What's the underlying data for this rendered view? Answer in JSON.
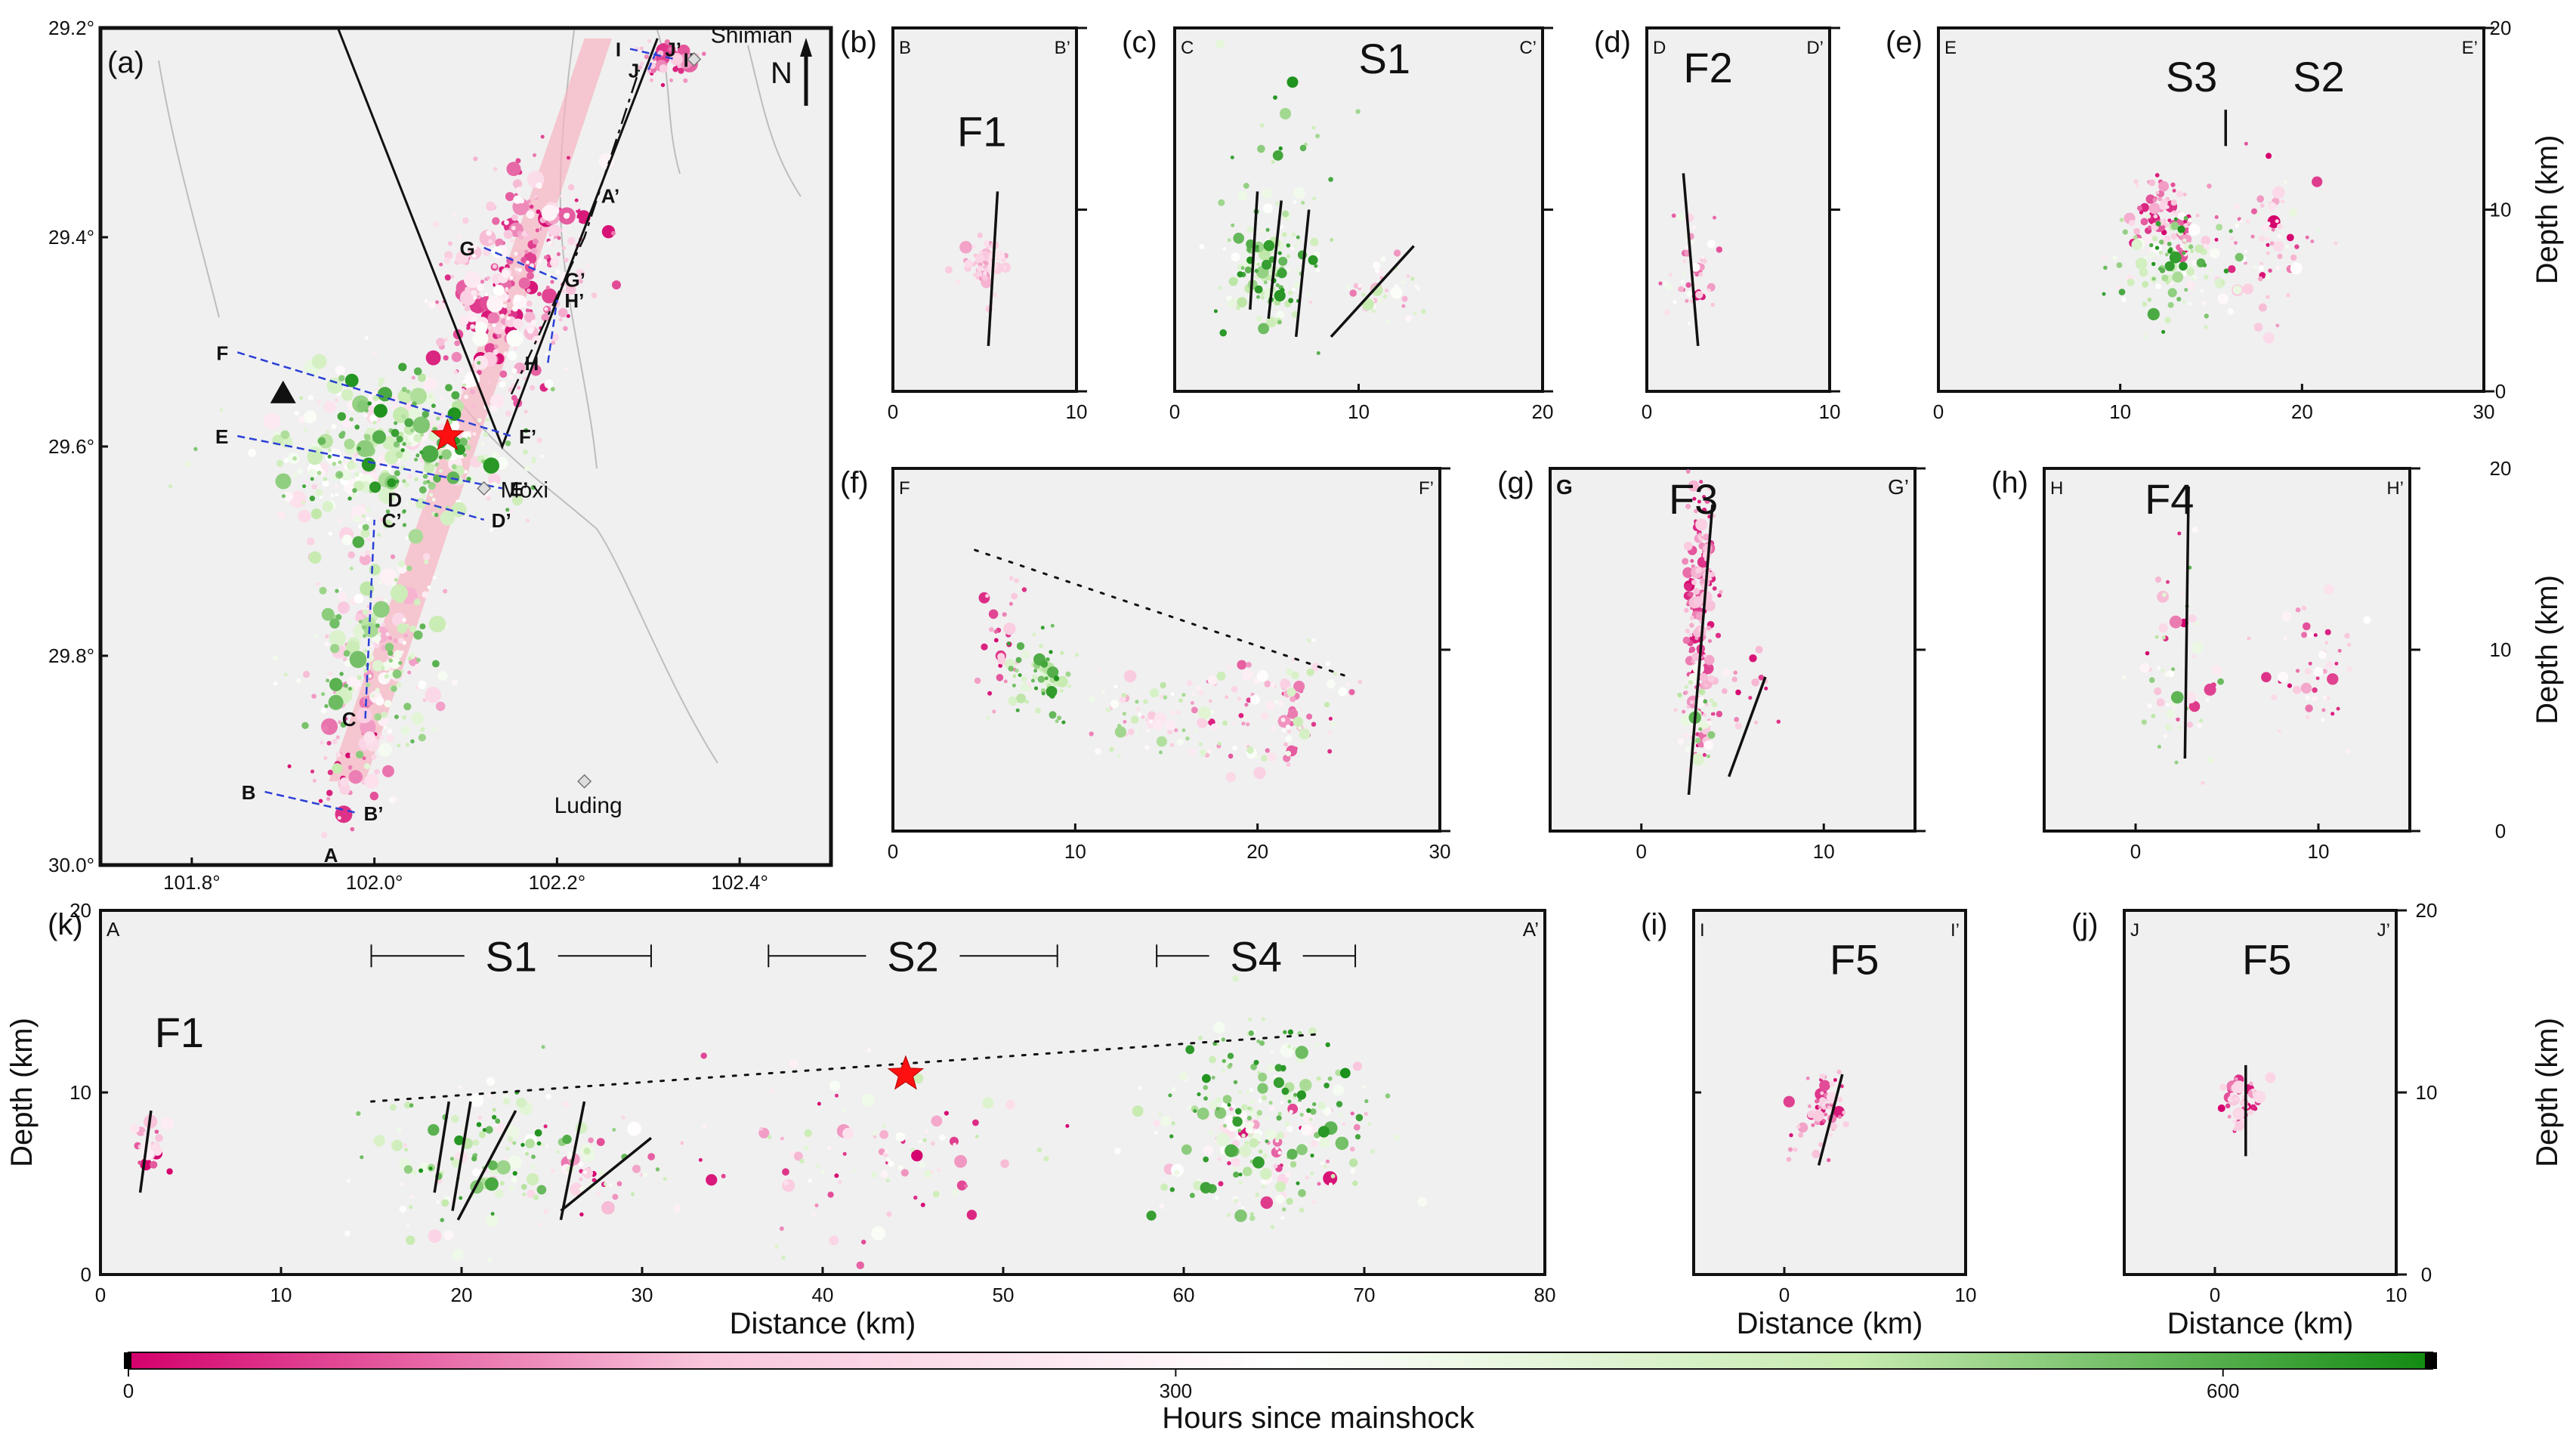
{
  "colorbar": {
    "label": "Hours since mainshock",
    "ticks": [
      0,
      300,
      600
    ],
    "range": [
      0,
      600
    ],
    "colors": [
      "#d4006c",
      "#f9c6dc",
      "#ffffff",
      "#c7ebb0",
      "#108a10"
    ]
  },
  "panels": {
    "a": {
      "label": "(a)",
      "lon_ticks": [
        "101.8°",
        "102.0°",
        "102.2°",
        "102.4°"
      ],
      "lat_ticks": [
        "30.0°",
        "29.8°",
        "29.6°",
        "29.4°",
        "29.2°"
      ],
      "north": "N",
      "towns": [
        {
          "name": "Luding",
          "lon": 102.23,
          "lat": 29.92
        },
        {
          "name": "Moxi",
          "lon": 102.12,
          "lat": 29.64
        },
        {
          "name": "Shimian",
          "lon": 102.35,
          "lat": 29.23
        }
      ],
      "profiles": [
        {
          "a": "A",
          "b": "A’",
          "lon1": 101.97,
          "lat1": 29.99,
          "lon2": 102.24,
          "lat2": 29.36
        },
        {
          "a": "B",
          "b": "B’",
          "lon1": 101.88,
          "lat1": 29.93,
          "lon2": 101.98,
          "lat2": 29.95
        },
        {
          "a": "C",
          "b": "C’",
          "lon1": 101.99,
          "lat1": 29.86,
          "lon2": 102.0,
          "lat2": 29.67
        },
        {
          "a": "D",
          "b": "D’",
          "lon1": 102.04,
          "lat1": 29.65,
          "lon2": 102.12,
          "lat2": 29.67
        },
        {
          "a": "E",
          "b": "E’",
          "lon1": 101.85,
          "lat1": 29.59,
          "lon2": 102.14,
          "lat2": 29.64
        },
        {
          "a": "F",
          "b": "F’",
          "lon1": 101.85,
          "lat1": 29.51,
          "lon2": 102.15,
          "lat2": 29.59
        },
        {
          "a": "G",
          "b": "G’",
          "lon1": 102.12,
          "lat1": 29.41,
          "lon2": 102.2,
          "lat2": 29.44
        },
        {
          "a": "H",
          "b": "H’",
          "lon1": 102.19,
          "lat1": 29.52,
          "lon2": 102.2,
          "lat2": 29.46
        },
        {
          "a": "I",
          "b": "I’",
          "lon1": 102.28,
          "lat1": 29.22,
          "lon2": 102.33,
          "lat2": 29.23
        },
        {
          "a": "J",
          "b": "J’",
          "lon1": 102.3,
          "lat1": 29.24,
          "lon2": 102.31,
          "lat2": 29.22
        }
      ]
    },
    "b": {
      "label": "(b)",
      "left": "B",
      "right": "B’",
      "xticks": [
        "0",
        "10"
      ],
      "labels": [
        "F1"
      ]
    },
    "c": {
      "label": "(c)",
      "left": "C",
      "right": "C’",
      "xticks": [
        "0",
        "10",
        "20"
      ],
      "labels": [
        "S1"
      ]
    },
    "d": {
      "label": "(d)",
      "left": "D",
      "right": "D’",
      "xticks": [
        "0",
        "10"
      ],
      "labels": [
        "F2"
      ]
    },
    "e": {
      "label": "(e)",
      "left": "E",
      "right": "E’",
      "xticks": [
        "0",
        "10",
        "20",
        "30"
      ],
      "yticks": [
        "0",
        "10",
        "20"
      ],
      "ylabel": "Depth (km)",
      "labels": [
        "S3",
        "S2"
      ]
    },
    "f": {
      "label": "(f)",
      "left": "F",
      "right": "F’",
      "xticks": [
        "0",
        "10",
        "20",
        "30"
      ],
      "labels": []
    },
    "g": {
      "label": "(g)",
      "left": "G",
      "right": "G’",
      "xticks": [
        "0",
        "10"
      ],
      "labels": [
        "F3"
      ]
    },
    "h": {
      "label": "(h)",
      "left": "H",
      "right": "H’",
      "xticks": [
        "0",
        "10"
      ],
      "yticks": [
        "0",
        "10",
        "20"
      ],
      "ylabel": "Depth (km)",
      "labels": [
        "F4"
      ]
    },
    "k": {
      "label": "(k)",
      "left": "A",
      "right": "A’",
      "xticks": [
        "0",
        "10",
        "20",
        "30",
        "40",
        "50",
        "60",
        "70",
        "80"
      ],
      "yticks": [
        "0",
        "10",
        "20"
      ],
      "xlabel": "Distance (km)",
      "ylabel": "Depth (km)",
      "labels": [
        "F1"
      ],
      "segments": [
        "S1",
        "S2",
        "S4"
      ]
    },
    "i": {
      "label": "(i)",
      "left": "I",
      "right": "I’",
      "xticks": [
        "0",
        "10"
      ],
      "xlabel": "Distance (km)",
      "labels": [
        "F5"
      ]
    },
    "j": {
      "label": "(j)",
      "left": "J",
      "right": "J’",
      "xticks": [
        "0",
        "10"
      ],
      "yticks": [
        "0",
        "10",
        "20"
      ],
      "xlabel": "Distance (km)",
      "ylabel": "Depth (km)",
      "labels": [
        "F5"
      ]
    }
  },
  "chart_data": [
    {
      "type": "scatter",
      "panel": "a",
      "xlabel": "",
      "ylabel": "",
      "xlim": [
        101.7,
        102.5
      ],
      "ylim": [
        29.2,
        30.0
      ],
      "mainshock": {
        "x": 102.08,
        "y": 29.59
      },
      "station": {
        "x": 101.9,
        "y": 29.55
      },
      "clusters": [
        {
          "x": 102.0,
          "y": 29.8,
          "sx": 0.035,
          "sy": 0.05,
          "n": 220,
          "hours": [
            120,
            600
          ]
        },
        {
          "x": 102.02,
          "y": 29.61,
          "sx": 0.07,
          "sy": 0.04,
          "n": 420,
          "hours": [
            200,
            650
          ]
        },
        {
          "x": 102.13,
          "y": 29.47,
          "sx": 0.03,
          "sy": 0.05,
          "n": 220,
          "hours": [
            0,
            350
          ]
        },
        {
          "x": 102.19,
          "y": 29.41,
          "sx": 0.025,
          "sy": 0.04,
          "n": 130,
          "hours": [
            0,
            300
          ]
        },
        {
          "x": 101.97,
          "y": 29.9,
          "sx": 0.02,
          "sy": 0.03,
          "n": 50,
          "hours": [
            0,
            250
          ]
        },
        {
          "x": 102.32,
          "y": 29.23,
          "sx": 0.02,
          "sy": 0.01,
          "n": 40,
          "hours": [
            0,
            200
          ]
        }
      ]
    },
    {
      "type": "scatter",
      "panel": "b",
      "xlabel": "",
      "ylabel": "",
      "xlim": [
        0,
        10
      ],
      "ylim": [
        20,
        0
      ],
      "clusters": [
        {
          "x": 5.0,
          "y": 7,
          "sx": 0.6,
          "sy": 0.7,
          "n": 60,
          "hours": [
            120,
            250
          ]
        }
      ],
      "faults": [
        {
          "x1": 5.2,
          "y1": 2.5,
          "x2": 5.7,
          "y2": 11
        }
      ]
    },
    {
      "type": "scatter",
      "panel": "c",
      "xlabel": "",
      "ylabel": "",
      "xlim": [
        0,
        20
      ],
      "ylim": [
        20,
        0
      ],
      "clusters": [
        {
          "x": 5,
          "y": 7,
          "sx": 1.3,
          "sy": 1.7,
          "n": 150,
          "hours": [
            300,
            650
          ]
        },
        {
          "x": 11,
          "y": 5.5,
          "sx": 1.3,
          "sy": 0.8,
          "n": 40,
          "hours": [
            100,
            500
          ]
        },
        {
          "x": 6,
          "y": 13,
          "sx": 2,
          "sy": 3,
          "n": 20,
          "hours": [
            400,
            650
          ]
        }
      ],
      "faults": [
        {
          "x1": 4.1,
          "y1": 4.5,
          "x2": 4.5,
          "y2": 11
        },
        {
          "x1": 5.1,
          "y1": 4.0,
          "x2": 5.8,
          "y2": 10.5
        },
        {
          "x1": 6.6,
          "y1": 3.0,
          "x2": 7.3,
          "y2": 10
        },
        {
          "x1": 8.5,
          "y1": 3.0,
          "x2": 13,
          "y2": 8
        }
      ]
    },
    {
      "type": "scatter",
      "panel": "d",
      "xlabel": "",
      "ylabel": "",
      "xlim": [
        0,
        10
      ],
      "ylim": [
        20,
        0
      ],
      "clusters": [
        {
          "x": 2.5,
          "y": 6.5,
          "sx": 0.6,
          "sy": 1.5,
          "n": 50,
          "hours": [
            0,
            400
          ]
        }
      ],
      "faults": [
        {
          "x1": 2.8,
          "y1": 2.5,
          "x2": 2.0,
          "y2": 12
        }
      ]
    },
    {
      "type": "scatter",
      "panel": "e",
      "xlabel": "",
      "ylabel": "Depth (km)",
      "xlim": [
        0,
        30
      ],
      "ylim": [
        20,
        0
      ],
      "clusters": [
        {
          "x": 13,
          "y": 7,
          "sx": 1.6,
          "sy": 1.5,
          "n": 130,
          "hours": [
            250,
            650
          ]
        },
        {
          "x": 12.5,
          "y": 9.5,
          "sx": 1.2,
          "sy": 1.1,
          "n": 80,
          "hours": [
            0,
            250
          ]
        },
        {
          "x": 18.5,
          "y": 8.5,
          "sx": 1.5,
          "sy": 2,
          "n": 70,
          "hours": [
            0,
            400
          ]
        }
      ],
      "faults": [
        {
          "x1": 15.8,
          "y1": 13.5,
          "x2": 15.8,
          "y2": 15.5
        }
      ]
    },
    {
      "type": "scatter",
      "panel": "f",
      "xlabel": "",
      "ylabel": "",
      "xlim": [
        0,
        30
      ],
      "ylim": [
        20,
        0
      ],
      "clusters": [
        {
          "x": 8,
          "y": 8.5,
          "sx": 1,
          "sy": 1,
          "n": 60,
          "hours": [
            400,
            650
          ]
        },
        {
          "x": 6,
          "y": 10,
          "sx": 0.6,
          "sy": 2,
          "n": 30,
          "hours": [
            0,
            200
          ]
        },
        {
          "x": 15,
          "y": 6.5,
          "sx": 2.5,
          "sy": 1.3,
          "n": 90,
          "hours": [
            100,
            550
          ]
        },
        {
          "x": 21.5,
          "y": 6.5,
          "sx": 1.8,
          "sy": 1.7,
          "n": 90,
          "hours": [
            0,
            500
          ]
        }
      ],
      "dashed": [
        {
          "x1": 4.5,
          "y1": 15.5,
          "x2": 25,
          "y2": 8.5
        }
      ]
    },
    {
      "type": "scatter",
      "panel": "g",
      "xlabel": "",
      "ylabel": "",
      "xlim": [
        -5,
        15
      ],
      "ylim": [
        20,
        0
      ],
      "clusters": [
        {
          "x": 3.2,
          "y": 12,
          "sx": 0.4,
          "sy": 3.5,
          "n": 200,
          "hours": [
            0,
            200
          ]
        },
        {
          "x": 3.0,
          "y": 6,
          "sx": 0.6,
          "sy": 2,
          "n": 40,
          "hours": [
            250,
            600
          ]
        },
        {
          "x": 6,
          "y": 7.5,
          "sx": 0.8,
          "sy": 1,
          "n": 15,
          "hours": [
            0,
            200
          ]
        }
      ],
      "faults": [
        {
          "x1": 2.6,
          "y1": 2,
          "x2": 3.9,
          "y2": 18
        },
        {
          "x1": 4.8,
          "y1": 3,
          "x2": 6.8,
          "y2": 8.5
        }
      ]
    },
    {
      "type": "scatter",
      "panel": "h",
      "xlabel": "",
      "ylabel": "Depth (km)",
      "xlim": [
        -5,
        15
      ],
      "ylim": [
        20,
        0
      ],
      "clusters": [
        {
          "x": 2.5,
          "y": 9,
          "sx": 1.3,
          "sy": 2.5,
          "n": 60,
          "hours": [
            0,
            600
          ]
        },
        {
          "x": 10,
          "y": 9,
          "sx": 1.6,
          "sy": 2,
          "n": 50,
          "hours": [
            0,
            350
          ]
        }
      ],
      "faults": [
        {
          "x1": 2.7,
          "y1": 4,
          "x2": 2.9,
          "y2": 19
        }
      ]
    },
    {
      "type": "scatter",
      "panel": "k",
      "xlabel": "Distance (km)",
      "ylabel": "Depth (km)",
      "xlim": [
        0,
        80
      ],
      "ylim": [
        20,
        0
      ],
      "mainshock": {
        "x": 44.6,
        "y": 11
      },
      "clusters": [
        {
          "x": 2.5,
          "y": 7,
          "sx": 0.6,
          "sy": 0.8,
          "n": 25,
          "hours": [
            0,
            300
          ]
        },
        {
          "x": 21,
          "y": 6.5,
          "sx": 3.5,
          "sy": 2,
          "n": 150,
          "hours": [
            200,
            650
          ]
        },
        {
          "x": 27.5,
          "y": 6,
          "sx": 1.5,
          "sy": 1.2,
          "n": 40,
          "hours": [
            0,
            500
          ]
        },
        {
          "x": 42,
          "y": 7,
          "sx": 4.5,
          "sy": 2.5,
          "n": 100,
          "hours": [
            0,
            500
          ]
        },
        {
          "x": 64,
          "y": 9,
          "sx": 2.8,
          "sy": 2.6,
          "n": 230,
          "hours": [
            300,
            650
          ]
        },
        {
          "x": 65,
          "y": 7,
          "sx": 2.5,
          "sy": 1.5,
          "n": 70,
          "hours": [
            0,
            350
          ]
        }
      ],
      "faults": [
        {
          "x1": 2.2,
          "y1": 4.5,
          "x2": 2.8,
          "y2": 9
        },
        {
          "x1": 18.5,
          "y1": 4.5,
          "x2": 19.3,
          "y2": 9.5
        },
        {
          "x1": 19.5,
          "y1": 3.5,
          "x2": 20.5,
          "y2": 9.5
        },
        {
          "x1": 19.8,
          "y1": 3.0,
          "x2": 23,
          "y2": 9
        },
        {
          "x1": 25.5,
          "y1": 3,
          "x2": 26.8,
          "y2": 9.5
        },
        {
          "x1": 25.5,
          "y1": 3.5,
          "x2": 30.5,
          "y2": 7.5
        }
      ],
      "dashed": [
        {
          "x1": 15,
          "y1": 9.5,
          "x2": 67.5,
          "y2": 13.2
        }
      ],
      "segment_bars": [
        {
          "label": "S1",
          "x1": 15,
          "x2": 30.5,
          "y": 17.5
        },
        {
          "label": "S2",
          "x1": 37,
          "x2": 53,
          "y": 17.5
        },
        {
          "label": "S4",
          "x1": 58.5,
          "x2": 69.5,
          "y": 17.5
        }
      ]
    },
    {
      "type": "scatter",
      "panel": "i",
      "xlabel": "Distance (km)",
      "ylabel": "",
      "xlim": [
        -5,
        10
      ],
      "ylim": [
        20,
        0
      ],
      "clusters": [
        {
          "x": 2.3,
          "y": 9.2,
          "sx": 0.5,
          "sy": 0.8,
          "n": 60,
          "hours": [
            0,
            250
          ]
        },
        {
          "x": 0.5,
          "y": 6.5,
          "sx": 0.8,
          "sy": 0.8,
          "n": 10,
          "hours": [
            0,
            200
          ]
        }
      ],
      "faults": [
        {
          "x1": 1.9,
          "y1": 6,
          "x2": 3.2,
          "y2": 11
        }
      ]
    },
    {
      "type": "scatter",
      "panel": "j",
      "xlabel": "Distance (km)",
      "ylabel": "Depth (km)",
      "xlim": [
        -5,
        10
      ],
      "ylim": [
        20,
        0
      ],
      "clusters": [
        {
          "x": 1.5,
          "y": 9.5,
          "sx": 0.5,
          "sy": 0.7,
          "n": 50,
          "hours": [
            0,
            250
          ]
        }
      ],
      "faults": [
        {
          "x1": 1.7,
          "y1": 6.5,
          "x2": 1.7,
          "y2": 11.5
        }
      ]
    }
  ]
}
